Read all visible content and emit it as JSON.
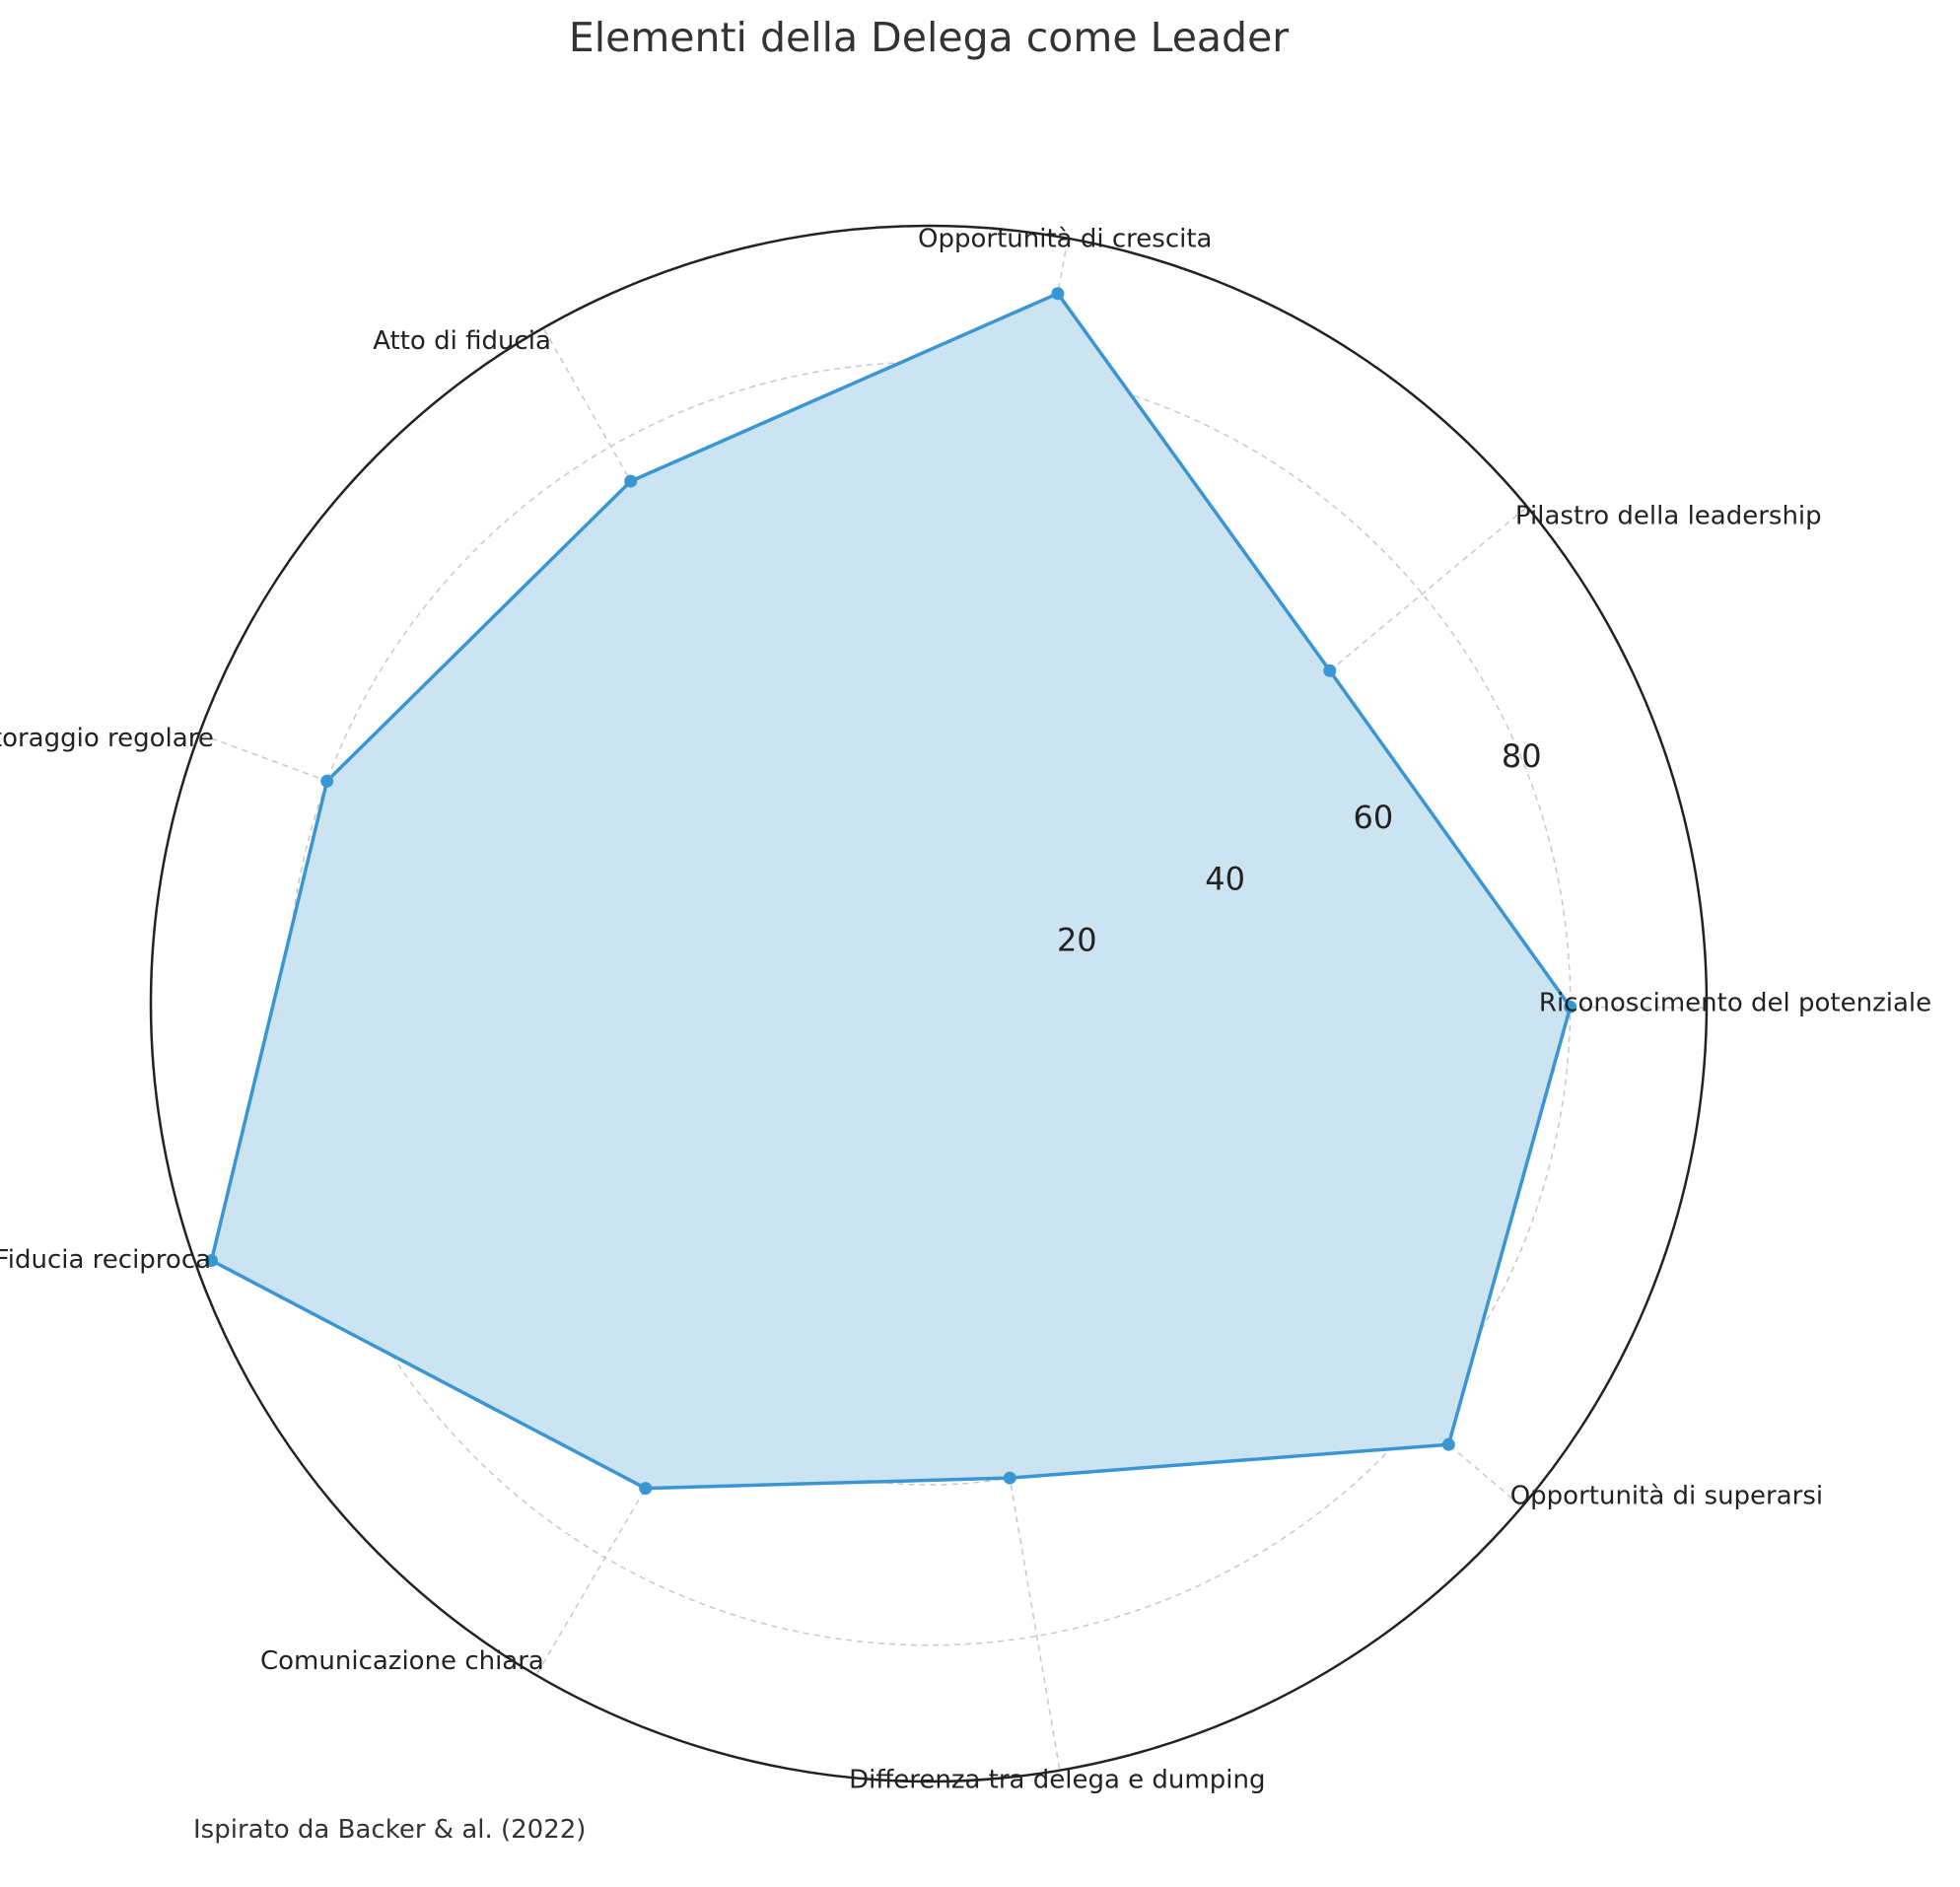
{
  "chart_data": {
    "type": "radar",
    "title": "Elementi della Delega come Leader",
    "footnote": "Ispirato da Backer & al. (2022)",
    "categories": [
      "Riconoscimento del potenziale",
      "Pilastro della leadership",
      "Opportunità di crescita",
      "Atto di fiducia",
      "Monitoraggio regolare",
      "Fiducia reciproca",
      "Comunicazione chiara",
      "Differenza tra delega e dumping",
      "Opportunità di superarsi"
    ],
    "series": [
      {
        "values": [
          80,
          65,
          90,
          75,
          80,
          95,
          70,
          60,
          85
        ]
      }
    ],
    "r_ticks": [
      20,
      40,
      60,
      80
    ],
    "r_tick_labels": [
      "20",
      "40",
      "60",
      "80"
    ],
    "rlim": [
      0,
      97
    ],
    "grid": true,
    "colors": {
      "line": "#3a96d2",
      "fill": "#cce4f2",
      "grid": "#c8c8c8",
      "outer": "#222222"
    }
  }
}
